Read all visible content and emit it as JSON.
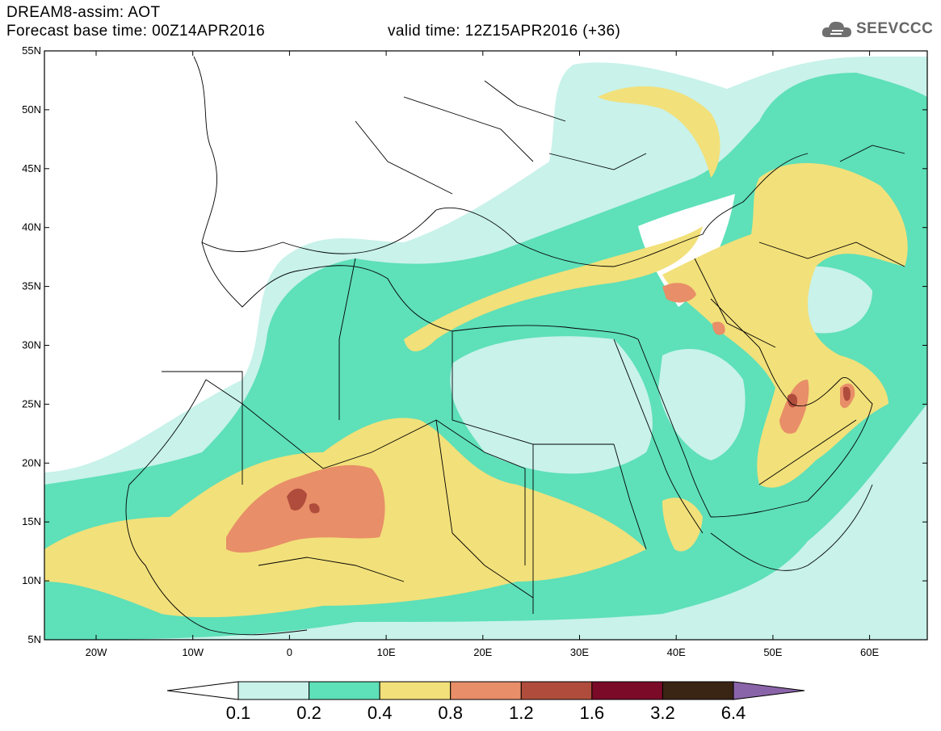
{
  "header": {
    "line1": "DREAM8-assim: AOT",
    "line2": "Forecast base time: 00Z14APR2016",
    "valid": "valid time: 12Z15APR2016 (+36)"
  },
  "logo": {
    "text": "SEEVCCC",
    "icon": "cloud-icon"
  },
  "map": {
    "lat_labels": [
      "55N",
      "50N",
      "45N",
      "40N",
      "35N",
      "30N",
      "25N",
      "20N",
      "15N",
      "10N",
      "5N"
    ],
    "lon_labels": [
      "20W",
      "10W",
      "0",
      "10E",
      "20E",
      "30E",
      "40E",
      "50E",
      "60E"
    ]
  },
  "colorbar": {
    "levels": [
      "0.1",
      "0.2",
      "0.4",
      "0.8",
      "1.2",
      "1.6",
      "3.2",
      "6.4"
    ],
    "colors": [
      "#ffffff",
      "#c8f2ea",
      "#5ee0b8",
      "#f2e07a",
      "#e88e68",
      "#b04c3c",
      "#7a0a28",
      "#3a2414",
      "#8a64a8"
    ]
  }
}
